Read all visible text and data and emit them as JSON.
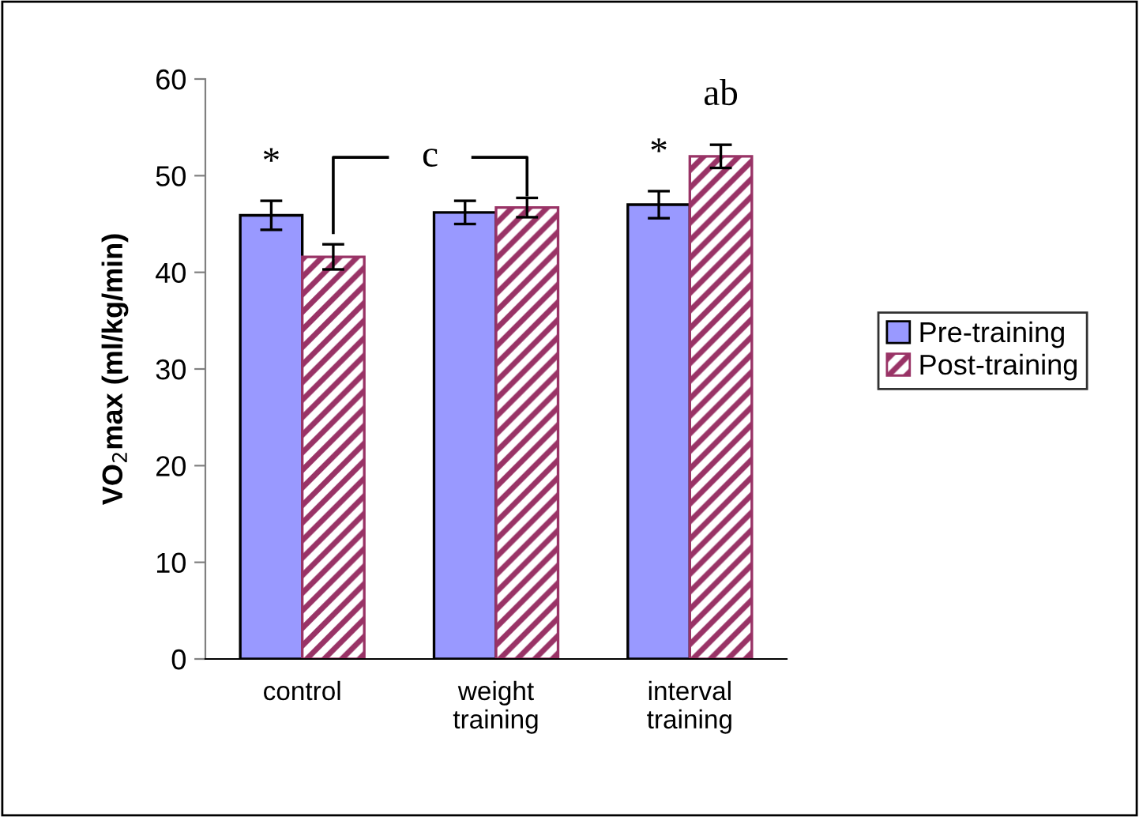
{
  "chart_data": {
    "type": "bar",
    "ylabel": "VO$_{2}$max (ml/kg/min)",
    "categories": [
      "control",
      "weight\ntraining",
      "interval\ntraining"
    ],
    "series": [
      {
        "name": "Pre-training",
        "color": "#9999ff",
        "values": [
          45.9,
          46.2,
          47.0
        ],
        "errors": [
          1.5,
          1.2,
          1.4
        ]
      },
      {
        "name": "Post-training",
        "color": "#993366",
        "values": [
          41.6,
          46.7,
          52.0
        ],
        "errors": [
          1.3,
          1.0,
          1.2
        ]
      }
    ],
    "ylim": [
      0,
      60
    ],
    "yticks": [
      0,
      10,
      20,
      30,
      40,
      50,
      60
    ],
    "grid": false,
    "legend": "right",
    "annotations": [
      "*",
      "c",
      "*",
      "ab"
    ]
  }
}
